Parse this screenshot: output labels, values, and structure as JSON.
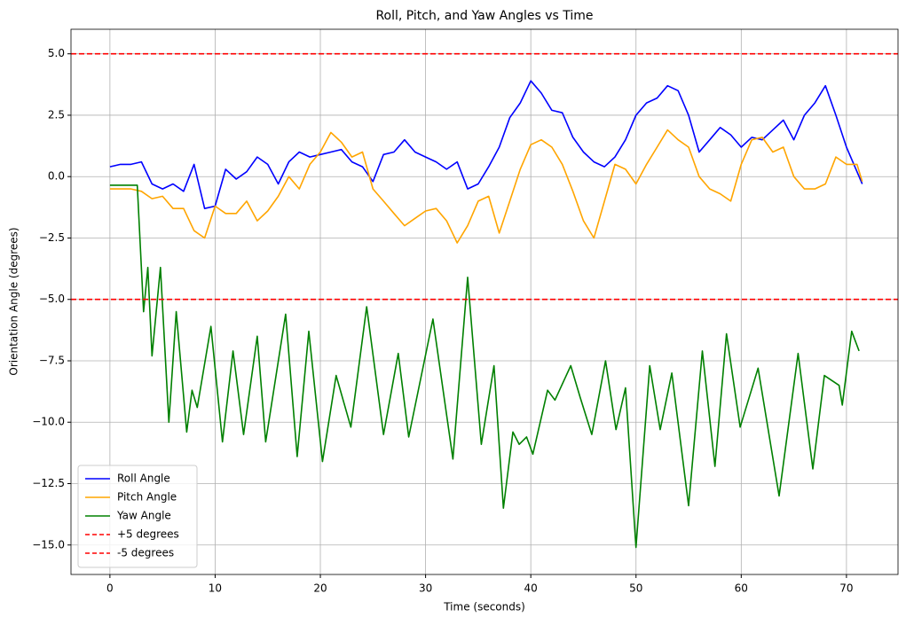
{
  "chart_data": {
    "type": "line",
    "title": "Roll, Pitch, and Yaw Angles vs Time",
    "x_label": "Time (seconds)",
    "y_label": "Orientation Angle (degrees)",
    "xlim": [
      -3.7,
      74.9
    ],
    "ylim": [
      -16.2,
      6.0
    ],
    "xticks": [
      0,
      10,
      20,
      30,
      40,
      50,
      60,
      70
    ],
    "yticks": [
      {
        "value": 5,
        "label": "5.0"
      },
      {
        "value": 2.5,
        "label": "2.5"
      },
      {
        "value": 0,
        "label": "0.0"
      },
      {
        "value": -2.5,
        "label": "−2.5"
      },
      {
        "value": -5,
        "label": "−5.0"
      },
      {
        "value": -7.5,
        "label": "−7.5"
      },
      {
        "value": -10,
        "label": "−10.0"
      },
      {
        "value": -12.5,
        "label": "−12.5"
      },
      {
        "value": -15,
        "label": "−15.0"
      }
    ],
    "grid": true,
    "legend": "lower left",
    "series": [
      {
        "name": "Roll Angle",
        "color": "#0000ff",
        "x": [
          0,
          1,
          2,
          3,
          4,
          5,
          6,
          7,
          8,
          9,
          10,
          11,
          12,
          13,
          14,
          15,
          16,
          17,
          18,
          19,
          20,
          21,
          22,
          23,
          24,
          25,
          26,
          27,
          28,
          29,
          30,
          31,
          32,
          33,
          34,
          35,
          36,
          37,
          38,
          39,
          40,
          41,
          42,
          43,
          44,
          45,
          46,
          47,
          48,
          49,
          50,
          51,
          52,
          53,
          54,
          55,
          56,
          57,
          58,
          59,
          60,
          61,
          62,
          63,
          64,
          65,
          66,
          67,
          68,
          69,
          70,
          71,
          71.5
        ],
        "values": [
          0.4,
          0.5,
          0.5,
          0.6,
          -0.3,
          -0.5,
          -0.3,
          -0.6,
          0.5,
          -1.3,
          -1.2,
          0.3,
          -0.1,
          0.2,
          0.8,
          0.5,
          -0.3,
          0.6,
          1.0,
          0.8,
          0.9,
          1.0,
          1.1,
          0.6,
          0.4,
          -0.2,
          0.9,
          1.0,
          1.5,
          1.0,
          0.8,
          0.6,
          0.3,
          0.6,
          -0.5,
          -0.3,
          0.4,
          1.2,
          2.4,
          3.0,
          3.9,
          3.4,
          2.7,
          2.6,
          1.6,
          1.0,
          0.6,
          0.4,
          0.8,
          1.5,
          2.5,
          3.0,
          3.2,
          3.7,
          3.5,
          2.5,
          1.0,
          1.5,
          2.0,
          1.7,
          1.2,
          1.6,
          1.5,
          1.9,
          2.3,
          1.5,
          2.5,
          3.0,
          3.7,
          2.5,
          1.2,
          0.2,
          -0.3
        ]
      },
      {
        "name": "Pitch Angle",
        "color": "#ffa500",
        "x": [
          0,
          1,
          2,
          3,
          4,
          5,
          6,
          7,
          8,
          9,
          10,
          11,
          12,
          13,
          14,
          15,
          16,
          17,
          18,
          19,
          20,
          21,
          22,
          23,
          24,
          25,
          26,
          27,
          28,
          29,
          30,
          31,
          32,
          33,
          34,
          35,
          36,
          37,
          38,
          39,
          40,
          41,
          42,
          43,
          44,
          45,
          46,
          47,
          48,
          49,
          50,
          51,
          52,
          53,
          54,
          55,
          56,
          57,
          58,
          59,
          60,
          61,
          62,
          63,
          64,
          65,
          66,
          67,
          68,
          69,
          70,
          71,
          71.5
        ],
        "values": [
          -0.5,
          -0.5,
          -0.5,
          -0.6,
          -0.9,
          -0.8,
          -1.3,
          -1.3,
          -2.2,
          -2.5,
          -1.2,
          -1.5,
          -1.5,
          -1.0,
          -1.8,
          -1.4,
          -0.8,
          0.0,
          -0.5,
          0.5,
          1.0,
          1.8,
          1.4,
          0.8,
          1.0,
          -0.5,
          -1.0,
          -1.5,
          -2.0,
          -1.7,
          -1.4,
          -1.3,
          -1.8,
          -2.7,
          -2.0,
          -1.0,
          -0.8,
          -2.3,
          -1.0,
          0.3,
          1.3,
          1.5,
          1.2,
          0.5,
          -0.6,
          -1.8,
          -2.5,
          -1.0,
          0.5,
          0.3,
          -0.3,
          0.5,
          1.2,
          1.9,
          1.5,
          1.2,
          0.0,
          -0.5,
          -0.7,
          -1.0,
          0.5,
          1.5,
          1.6,
          1.0,
          1.2,
          0.0,
          -0.5,
          -0.5,
          -0.3,
          0.8,
          0.5,
          0.5,
          -0.2
        ]
      },
      {
        "name": "Yaw Angle",
        "color": "#008000",
        "x": [
          0,
          2.6,
          3.2,
          3.6,
          4.0,
          4.8,
          5.6,
          6.3,
          7.3,
          7.8,
          8.3,
          9.6,
          10.7,
          11.7,
          12.7,
          14.0,
          14.8,
          16.7,
          17.8,
          18.9,
          20.2,
          21.5,
          22.9,
          24.4,
          26.0,
          27.4,
          28.4,
          30.7,
          32.6,
          34.0,
          35.3,
          36.5,
          37.4,
          38.3,
          38.9,
          39.6,
          40.2,
          41.6,
          42.3,
          43.8,
          44.7,
          45.8,
          47.1,
          48.1,
          49.0,
          50.0,
          51.3,
          52.3,
          53.4,
          55.0,
          56.3,
          57.5,
          58.6,
          59.9,
          61.6,
          63.6,
          65.4,
          66.8,
          67.9,
          69.3,
          69.6,
          70.5,
          71.2
        ],
        "values": [
          -0.35,
          -0.35,
          -5.5,
          -3.7,
          -7.3,
          -3.7,
          -10.0,
          -5.5,
          -10.4,
          -8.7,
          -9.4,
          -6.1,
          -10.8,
          -7.1,
          -10.5,
          -6.5,
          -10.8,
          -5.6,
          -11.4,
          -6.3,
          -11.6,
          -8.1,
          -10.2,
          -5.3,
          -10.5,
          -7.2,
          -10.6,
          -5.8,
          -11.5,
          -4.1,
          -10.9,
          -7.7,
          -13.5,
          -10.4,
          -10.9,
          -10.6,
          -11.3,
          -8.7,
          -9.1,
          -7.7,
          -9.0,
          -10.5,
          -7.5,
          -10.3,
          -8.6,
          -15.1,
          -7.7,
          -10.3,
          -8.0,
          -13.4,
          -7.1,
          -11.8,
          -6.4,
          -10.2,
          -7.8,
          -13.0,
          -7.2,
          -11.9,
          -8.1,
          -8.5,
          -9.3,
          -6.3,
          -7.1
        ]
      }
    ],
    "hlines": [
      {
        "name": "+5 degrees",
        "color": "#ff0000",
        "value": 5
      },
      {
        "name": "-5 degrees",
        "color": "#ff0000",
        "value": -5
      }
    ]
  }
}
